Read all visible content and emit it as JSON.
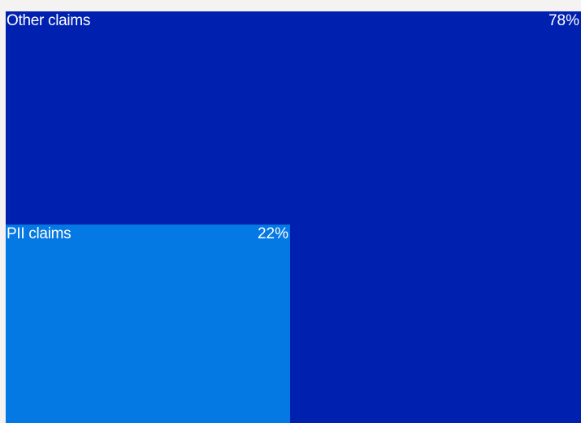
{
  "chart_data": {
    "type": "treemap",
    "items": [
      {
        "label": "Other claims",
        "value": 78,
        "value_label": "78%",
        "color": "#0020b0"
      },
      {
        "label": "PII claims",
        "value": 22,
        "value_label": "22%",
        "color": "#0478e3"
      }
    ]
  }
}
